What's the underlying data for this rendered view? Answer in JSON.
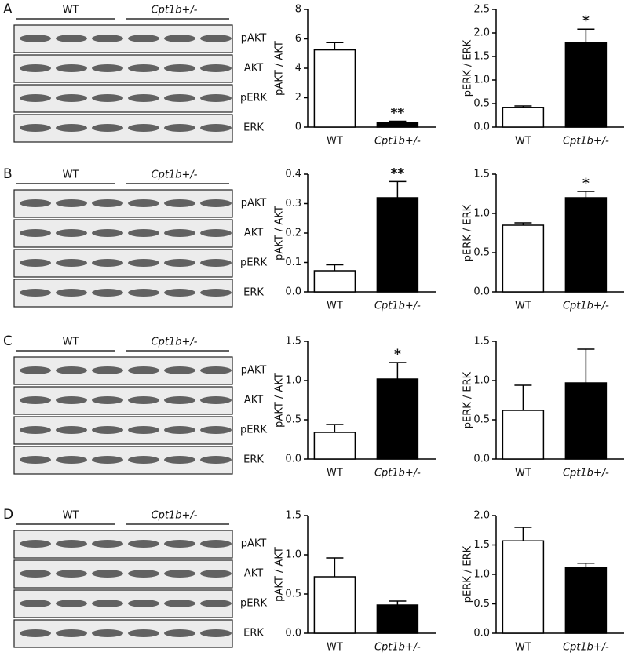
{
  "panels": [
    {
      "label": "A",
      "groups": [
        "WT",
        "Cpt1b+/-"
      ],
      "lanes": [
        "pAKT",
        "AKT",
        "pERK",
        "ERK"
      ]
    },
    {
      "label": "B",
      "groups": [
        "WT",
        "Cpt1b+/-"
      ],
      "lanes": [
        "pAKT",
        "AKT",
        "pERK",
        "ERK"
      ]
    },
    {
      "label": "C",
      "groups": [
        "WT",
        "Cpt1b+/-"
      ],
      "lanes": [
        "pAKT",
        "AKT",
        "pERK",
        "ERK"
      ]
    },
    {
      "label": "D",
      "groups": [
        "WT",
        "Cpt1b+/-"
      ],
      "lanes": [
        "pAKT",
        "AKT",
        "pERK",
        "ERK"
      ]
    }
  ],
  "chart_data": [
    {
      "type": "bar",
      "ylabel": "pAKT / AKT",
      "categories": [
        "WT",
        "Cpt1b+/-"
      ],
      "values": [
        5.25,
        0.3
      ],
      "errors": [
        0.5,
        0.1
      ],
      "significance": [
        null,
        "**"
      ],
      "colors": [
        "#ffffff",
        "#000000"
      ],
      "ylim": [
        0,
        8
      ],
      "yticks": [
        0,
        2,
        4,
        6,
        8
      ]
    },
    {
      "type": "bar",
      "ylabel": "pERK / ERK",
      "categories": [
        "WT",
        "Cpt1b+/-"
      ],
      "values": [
        0.42,
        1.8
      ],
      "errors": [
        0.03,
        0.28
      ],
      "significance": [
        null,
        "*"
      ],
      "colors": [
        "#ffffff",
        "#000000"
      ],
      "ylim": [
        0,
        2.5
      ],
      "yticks": [
        {
          "value": 0,
          "label": "0.0"
        },
        0.5,
        {
          "value": 1,
          "label": "1.0"
        },
        1.5,
        {
          "value": 2,
          "label": "2.0"
        },
        2.5
      ]
    },
    {
      "type": "bar",
      "ylabel": "pAKT / AKT",
      "categories": [
        "WT",
        "Cpt1b+/-"
      ],
      "values": [
        0.072,
        0.32
      ],
      "errors": [
        0.02,
        0.055
      ],
      "significance": [
        null,
        "**"
      ],
      "colors": [
        "#ffffff",
        "#000000"
      ],
      "ylim": [
        0,
        0.4
      ],
      "yticks": [
        {
          "value": 0,
          "label": "0.0"
        },
        0.1,
        0.2,
        0.3,
        0.4
      ]
    },
    {
      "type": "bar",
      "ylabel": "pERK / ERK",
      "categories": [
        "WT",
        "Cpt1b+/-"
      ],
      "values": [
        0.85,
        1.2
      ],
      "errors": [
        0.03,
        0.08
      ],
      "significance": [
        null,
        "*"
      ],
      "colors": [
        "#ffffff",
        "#000000"
      ],
      "ylim": [
        0,
        1.5
      ],
      "yticks": [
        {
          "value": 0,
          "label": "0.0"
        },
        0.5,
        {
          "value": 1,
          "label": "1.0"
        },
        1.5
      ]
    },
    {
      "type": "bar",
      "ylabel": "pAKT / AKT",
      "categories": [
        "WT",
        "Cpt1b+/-"
      ],
      "values": [
        0.34,
        1.02
      ],
      "errors": [
        0.1,
        0.21
      ],
      "significance": [
        null,
        "*"
      ],
      "colors": [
        "#ffffff",
        "#000000"
      ],
      "ylim": [
        0,
        1.5
      ],
      "yticks": [
        {
          "value": 0,
          "label": "0.0"
        },
        0.5,
        {
          "value": 1,
          "label": "1.0"
        },
        1.5
      ]
    },
    {
      "type": "bar",
      "ylabel": "pERK / ERK",
      "categories": [
        "WT",
        "Cpt1b+/-"
      ],
      "values": [
        0.62,
        0.97
      ],
      "errors": [
        0.32,
        0.43
      ],
      "colors": [
        "#ffffff",
        "#000000"
      ],
      "ylim": [
        0,
        1.5
      ],
      "yticks": [
        {
          "value": 0,
          "label": "0.0"
        },
        0.5,
        {
          "value": 1,
          "label": "1.0"
        },
        1.5
      ]
    },
    {
      "type": "bar",
      "ylabel": "pAKT / AKT",
      "categories": [
        "WT",
        "Cpt1b+/-"
      ],
      "values": [
        0.72,
        0.36
      ],
      "errors": [
        0.24,
        0.05
      ],
      "colors": [
        "#ffffff",
        "#000000"
      ],
      "ylim": [
        0,
        1.5
      ],
      "yticks": [
        {
          "value": 0,
          "label": "0.0"
        },
        0.5,
        {
          "value": 1,
          "label": "1.0"
        },
        1.5
      ]
    },
    {
      "type": "bar",
      "ylabel": "pERK / ERK",
      "categories": [
        "WT",
        "Cpt1b+/-"
      ],
      "values": [
        1.57,
        1.11
      ],
      "errors": [
        0.23,
        0.08
      ],
      "colors": [
        "#ffffff",
        "#000000"
      ],
      "ylim": [
        0,
        2.0
      ],
      "yticks": [
        {
          "value": 0,
          "label": "0.0"
        },
        0.5,
        {
          "value": 1,
          "label": "1.0"
        },
        1.5,
        {
          "value": 2,
          "label": "2.0"
        }
      ]
    }
  ]
}
